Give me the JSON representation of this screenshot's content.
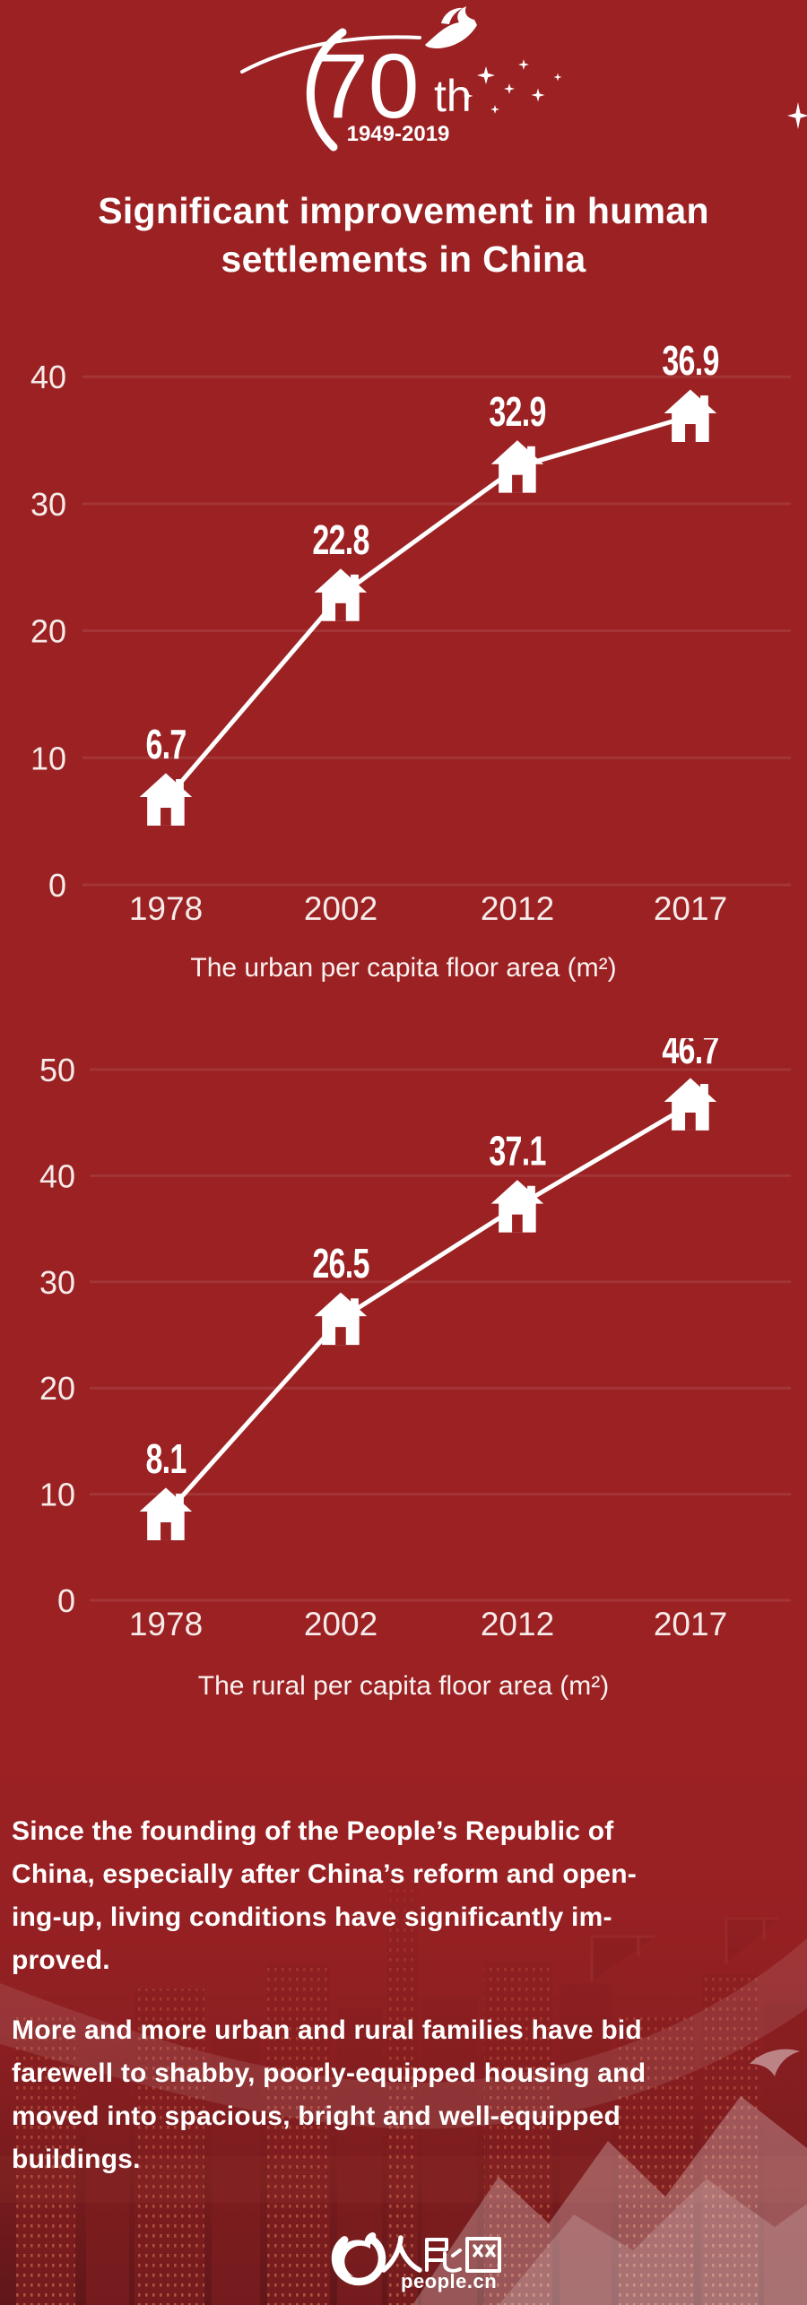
{
  "page": {
    "background_color": "#9b2123",
    "text_color": "#ffffff"
  },
  "anniversary_logo": {
    "number": "70",
    "suffix": "th",
    "years": "1949-2019"
  },
  "title": {
    "lines": [
      "Significant improvement in human",
      "settlements in China"
    ]
  },
  "chart_data": [
    {
      "type": "line",
      "title": "The urban per capita floor area",
      "unit": "m²",
      "categories": [
        "1978",
        "2002",
        "2012",
        "2017"
      ],
      "values": [
        6.7,
        22.8,
        32.9,
        36.9
      ],
      "value_labels": [
        "6.7",
        "22.8",
        "32.9",
        "36.9"
      ],
      "ylim": [
        0,
        40
      ],
      "yticks": [
        0,
        10,
        20,
        30,
        40
      ],
      "grid": true,
      "legend": false,
      "marker": "house-icon",
      "line_color": "#ffffff",
      "label_color": "#ffffff"
    },
    {
      "type": "line",
      "title": "The rural per capita floor area",
      "unit": "m²",
      "categories": [
        "1978",
        "2002",
        "2012",
        "2017"
      ],
      "values": [
        8.1,
        26.5,
        37.1,
        46.7
      ],
      "value_labels": [
        "8.1",
        "26.5",
        "37.1",
        "46.7"
      ],
      "ylim": [
        0,
        50
      ],
      "yticks": [
        0,
        10,
        20,
        30,
        40,
        50
      ],
      "grid": true,
      "legend": false,
      "marker": "house-icon",
      "line_color": "#ffffff",
      "label_color": "#ffffff"
    }
  ],
  "paragraphs": [
    {
      "lines": [
        "Since the founding of the People’s Republic of",
        "China, especially after China’s reform and open-",
        "ing-up, living conditions have significantly im-",
        "proved."
      ]
    },
    {
      "lines": [
        "More and more urban and rural families have bid",
        "farewell to shabby, poorly-equipped housing and",
        "moved into spacious, bright and well-equipped",
        "buildings."
      ]
    }
  ],
  "footer": {
    "brand_cn": "人民网",
    "brand_en": "people.cn"
  }
}
